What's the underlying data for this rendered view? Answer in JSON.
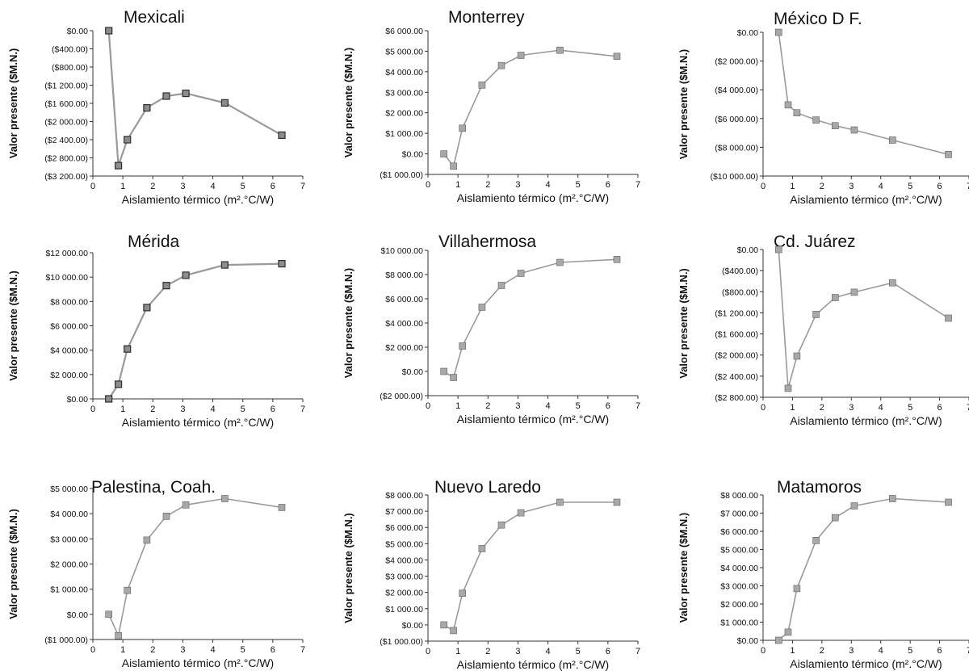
{
  "chart_data": [
    {
      "type": "line",
      "title": "Mexicali",
      "xlabel": "Aislamiento térmico (m².°C/W)",
      "ylabel": "Valor presente ($M.N.)",
      "xlim": [
        0,
        7
      ],
      "ylim": [
        -3200,
        0
      ],
      "xticks": [
        "0",
        "1",
        "2",
        "3",
        "4",
        "5",
        "6",
        "7"
      ],
      "yticks": [
        "$0.00",
        "($400.00)",
        "($800.00)",
        "($1 200.00)",
        "($1 600.00)",
        "($2 000.00)",
        "($2 400.00)",
        "($2 800.00)",
        "($3 200.00)"
      ],
      "marker": "square-dark",
      "series": [
        {
          "x": [
            0.53,
            0.85,
            1.15,
            1.8,
            2.45,
            3.1,
            4.4,
            6.3
          ],
          "y": [
            0,
            -2970,
            -2400,
            -1700,
            -1440,
            -1380,
            -1590,
            -2300
          ]
        }
      ]
    },
    {
      "type": "line",
      "title": "Monterrey",
      "xlabel": "Aislamiento térmico (m².°C/W)",
      "ylabel": "Valor presente ($M.N.)",
      "xlim": [
        0,
        7
      ],
      "ylim": [
        -1000,
        6000
      ],
      "xticks": [
        "0",
        "1",
        "2",
        "3",
        "4",
        "5",
        "6",
        "7"
      ],
      "yticks": [
        "$6 000.00",
        "$5 000.00",
        "$4 000.00",
        "$3 000.00",
        "$2 000.00",
        "$1 000.00",
        "$0.00",
        "($1 000.00)"
      ],
      "marker": "square",
      "series": [
        {
          "x": [
            0.53,
            0.85,
            1.15,
            1.8,
            2.45,
            3.1,
            4.4,
            6.3
          ],
          "y": [
            0,
            -600,
            1250,
            3350,
            4300,
            4800,
            5050,
            4750
          ]
        }
      ]
    },
    {
      "type": "line",
      "title": "México D F.",
      "xlabel": "Aislamiento térmico (m².°C/W)",
      "ylabel": "Valor presente ($M.N.)",
      "xlim": [
        0,
        7
      ],
      "ylim": [
        -10000,
        0
      ],
      "xticks": [
        "0",
        "1",
        "2",
        "3",
        "4",
        "5",
        "6",
        "7"
      ],
      "yticks": [
        "$0.00",
        "($2 000.00)",
        "($4 000.00)",
        "($6 000.00)",
        "($8 000.00)",
        "($10 000.00)"
      ],
      "marker": "square",
      "series": [
        {
          "x": [
            0.53,
            0.85,
            1.15,
            1.8,
            2.45,
            3.1,
            4.4,
            6.3
          ],
          "y": [
            0,
            -5050,
            -5600,
            -6100,
            -6500,
            -6800,
            -7500,
            -8500
          ]
        }
      ]
    },
    {
      "type": "line",
      "title": "Mérida",
      "xlabel": "Aislamiento térmico (m².°C/W)",
      "ylabel": "Valor presente ($M.N.)",
      "xlim": [
        0,
        7
      ],
      "ylim": [
        0,
        12000
      ],
      "xticks": [
        "0",
        "1",
        "2",
        "3",
        "4",
        "5",
        "6",
        "7"
      ],
      "yticks": [
        "$12 000.00",
        "$10 000.00",
        "$8 000.00",
        "$6 000.00",
        "$4 000.00",
        "$2 000.00",
        "$0.00"
      ],
      "marker": "square-dark",
      "series": [
        {
          "x": [
            0.53,
            0.85,
            1.15,
            1.8,
            2.45,
            3.1,
            4.4,
            6.3
          ],
          "y": [
            0,
            1200,
            4100,
            7500,
            9300,
            10150,
            11000,
            11100
          ]
        }
      ]
    },
    {
      "type": "line",
      "title": "Villahermosa",
      "xlabel": "Aislamiento térmico (m².°C/W)",
      "ylabel": "Valor presente ($M.N.)",
      "xlim": [
        0,
        7
      ],
      "ylim": [
        -2000,
        10000
      ],
      "xticks": [
        "0",
        "1",
        "2",
        "3",
        "4",
        "5",
        "6",
        "7"
      ],
      "yticks": [
        "$10 000.00",
        "$8 000.00",
        "$6 000.00",
        "$4 000.00",
        "$2 000.00",
        "$0.00",
        "($2 000.00)"
      ],
      "marker": "square",
      "series": [
        {
          "x": [
            0.53,
            0.85,
            1.15,
            1.8,
            2.45,
            3.1,
            4.4,
            6.3
          ],
          "y": [
            0,
            -500,
            2100,
            5300,
            7100,
            8100,
            9000,
            9250
          ]
        }
      ]
    },
    {
      "type": "line",
      "title": "Cd.  Juárez",
      "xlabel": "Aislamiento térmico (m².°C/W)",
      "ylabel": "Valor presente ($M.N.)",
      "xlim": [
        0,
        7
      ],
      "ylim": [
        -2800,
        0
      ],
      "xticks": [
        "0",
        "1",
        "2",
        "3",
        "4",
        "5",
        "6",
        "7"
      ],
      "yticks": [
        "$0.00",
        "($400.00)",
        "($800.00)",
        "($1 200.00)",
        "($1 600.00)",
        "($2 000.00)",
        "($2 400.00)",
        "($2 800.00)"
      ],
      "marker": "square",
      "series": [
        {
          "x": [
            0.53,
            0.85,
            1.15,
            1.8,
            2.45,
            3.1,
            4.4,
            6.3
          ],
          "y": [
            0,
            -2630,
            -2020,
            -1230,
            -910,
            -810,
            -630,
            -1300
          ]
        }
      ]
    },
    {
      "type": "line",
      "title": "Palestina, Coah.",
      "xlabel": "Aislamiento térmico (m².°C/W)",
      "ylabel": "Valor presente ($M.N.)",
      "xlim": [
        0,
        7
      ],
      "ylim": [
        -1000,
        5000
      ],
      "xticks": [
        "0",
        "1",
        "2",
        "3",
        "4",
        "5",
        "6",
        "7"
      ],
      "yticks": [
        "$5 000.00",
        "$4 000.00",
        "$3 000.00",
        "$2 000.00",
        "$1 000.00",
        "$0.00",
        "($1 000.00)"
      ],
      "marker": "square",
      "series": [
        {
          "x": [
            0.53,
            0.85,
            1.15,
            1.8,
            2.45,
            3.1,
            4.4,
            6.3
          ],
          "y": [
            0,
            -850,
            950,
            2950,
            3900,
            4350,
            4600,
            4250
          ]
        }
      ]
    },
    {
      "type": "line",
      "title": "Nuevo Laredo",
      "xlabel": "Aislamiento térmico (m².°C/W)",
      "ylabel": "Valor presente ($M.N.)",
      "xlim": [
        0,
        7
      ],
      "ylim": [
        -1000,
        8000
      ],
      "xticks": [
        "0",
        "1",
        "2",
        "3",
        "4",
        "5",
        "6",
        "7"
      ],
      "yticks": [
        "$8 000.00",
        "$7 000.00",
        "$6 000.00",
        "$5 000.00",
        "$4 000.00",
        "$3 000.00",
        "$2 000.00",
        "$1 000.00",
        "$0.00",
        "($1 000.00)"
      ],
      "marker": "square",
      "series": [
        {
          "x": [
            0.53,
            0.85,
            1.15,
            1.8,
            2.45,
            3.1,
            4.4,
            6.3
          ],
          "y": [
            0,
            -350,
            1950,
            4700,
            6150,
            6900,
            7550,
            7550
          ]
        }
      ]
    },
    {
      "type": "line",
      "title": "Matamoros",
      "xlabel": "Aislamiento térmico (m².°C/W)",
      "ylabel": "Valor presente ($M.N.)",
      "xlim": [
        0,
        7
      ],
      "ylim": [
        0,
        8000
      ],
      "xticks": [
        "0",
        "1",
        "2",
        "3",
        "4",
        "5",
        "6",
        "7"
      ],
      "yticks": [
        "$8 000.00",
        "$7 000.00",
        "$6 000.00",
        "$5 000.00",
        "$4 000.00",
        "$3 000.00",
        "$2 000.00",
        "$1 000.00",
        "$0.00"
      ],
      "marker": "square",
      "series": [
        {
          "x": [
            0.53,
            0.85,
            1.15,
            1.8,
            2.45,
            3.1,
            4.4,
            6.3
          ],
          "y": [
            0,
            450,
            2850,
            5500,
            6750,
            7400,
            7800,
            7600
          ]
        }
      ]
    }
  ],
  "colors": {
    "line": "#9a9a9a",
    "marker_fill": "#a8a8a8",
    "marker_fill_dark": "#8c8c8c",
    "marker_stroke": "#606060",
    "marker_stroke_dark": "#2e2e2e",
    "axis": "#333333",
    "text": "#111111"
  }
}
